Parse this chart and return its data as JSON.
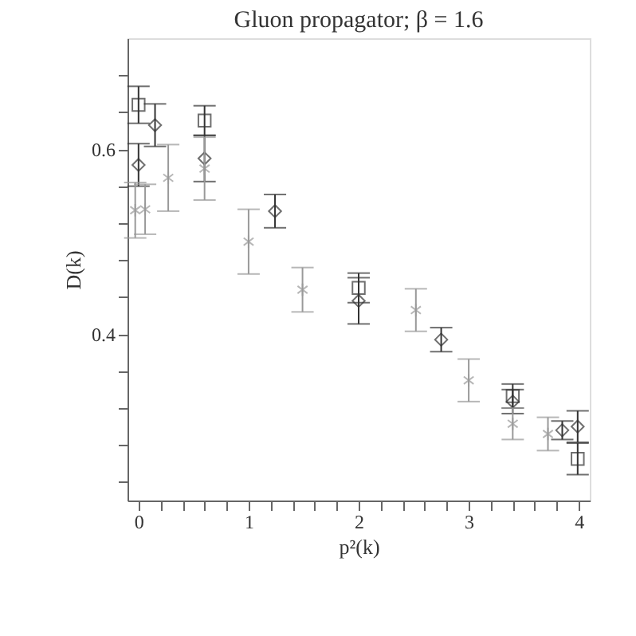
{
  "chart_data": {
    "type": "scatter",
    "title": "Gluon propagator; β = 1.6",
    "xlabel": "p²(k)",
    "ylabel": "D(k)",
    "xlim": [
      -0.1,
      4.1
    ],
    "ylim": [
      0.22,
      0.72
    ],
    "xticks": [
      0,
      {
        "value": 0.2,
        "label": null
      },
      {
        "value": 0.4,
        "label": null
      },
      {
        "value": 0.6,
        "label": null
      },
      {
        "value": 0.8,
        "label": null
      },
      1,
      {
        "value": 1.2,
        "label": null
      },
      {
        "value": 1.4,
        "label": null
      },
      {
        "value": 1.6,
        "label": null
      },
      {
        "value": 1.8,
        "label": null
      },
      2,
      {
        "value": 2.2,
        "label": null
      },
      {
        "value": 2.4,
        "label": null
      },
      {
        "value": 2.6,
        "label": null
      },
      {
        "value": 2.8,
        "label": null
      },
      3,
      {
        "value": 3.2,
        "label": null
      },
      {
        "value": 3.4,
        "label": null
      },
      {
        "value": 3.6,
        "label": null
      },
      {
        "value": 3.8,
        "label": null
      },
      4
    ],
    "yticks": [
      {
        "value": 0.24,
        "label": null
      },
      {
        "value": 0.28,
        "label": null
      },
      {
        "value": 0.32,
        "label": null
      },
      {
        "value": 0.36,
        "label": null
      },
      0.4,
      {
        "value": 0.44,
        "label": null
      },
      {
        "value": 0.48,
        "label": null
      },
      {
        "value": 0.52,
        "label": null
      },
      {
        "value": 0.56,
        "label": null
      },
      0.6,
      {
        "value": 0.64,
        "label": null
      },
      {
        "value": 0.68,
        "label": null
      }
    ],
    "grid": false,
    "series": [
      {
        "color": "#333333",
        "marker": "square",
        "x": [
          0,
          0.6,
          2,
          3.4,
          3.99
        ],
        "values": [
          0.648,
          0.631,
          0.45,
          0.333,
          0.265
        ],
        "errors": [
          0.02,
          0.016,
          0.016,
          0.013,
          0.017
        ]
      },
      {
        "color": "#333333",
        "marker": "diamond",
        "x": [
          0,
          0.15,
          0.6,
          1.24,
          2,
          2.75,
          3.4,
          3.85,
          3.99
        ],
        "values": [
          0.583,
          0.626,
          0.59,
          0.533,
          0.436,
          0.394,
          0.327,
          0.296,
          0.3
        ],
        "errors": [
          0.023,
          0.023,
          0.025,
          0.018,
          0.025,
          0.013,
          0.013,
          0.01,
          0.017
        ]
      },
      {
        "color": "#999999",
        "marker": "cross",
        "x": [
          -0.03,
          0.06,
          0.27,
          0.6,
          1.0,
          1.49,
          2.52,
          3.0,
          3.4,
          3.72
        ],
        "values": [
          0.534,
          0.535,
          0.569,
          0.579,
          0.5,
          0.448,
          0.426,
          0.35,
          0.303,
          0.292
        ],
        "errors": [
          0.03,
          0.027,
          0.036,
          0.034,
          0.035,
          0.024,
          0.023,
          0.023,
          0.017,
          0.018
        ]
      }
    ]
  }
}
